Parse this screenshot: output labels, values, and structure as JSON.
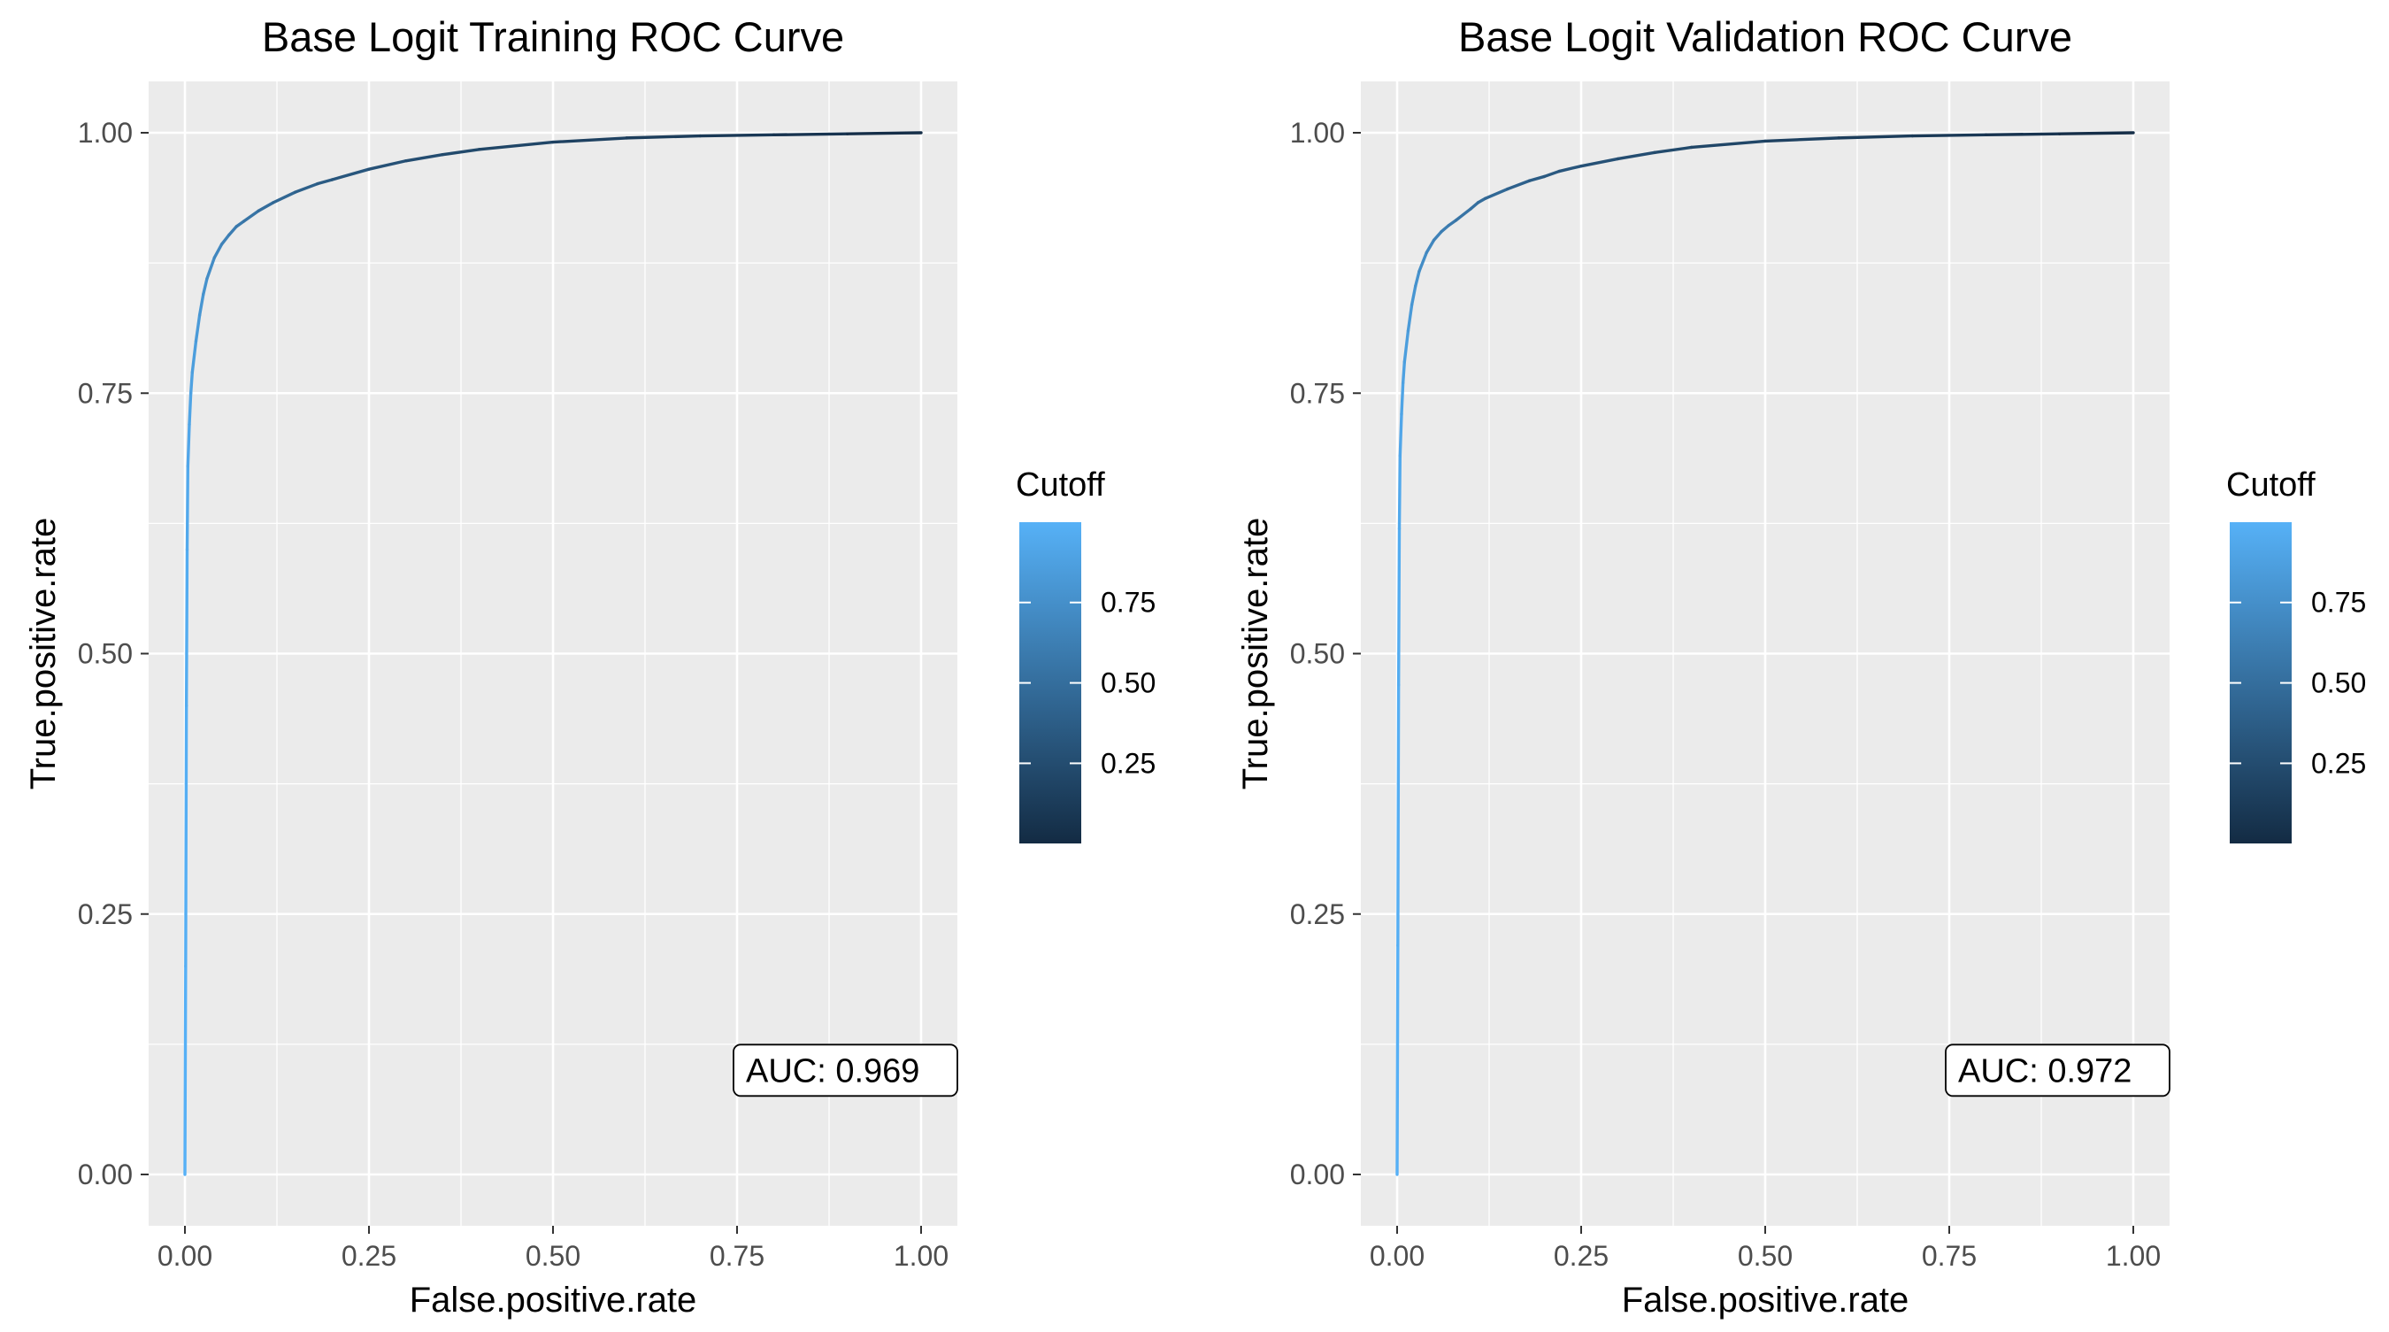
{
  "chart_data": [
    {
      "type": "line",
      "title": "Base Logit Training ROC Curve",
      "xlabel": "False.positive.rate",
      "ylabel": "True.positive.rate",
      "xlim": [
        0,
        1
      ],
      "ylim": [
        0,
        1
      ],
      "x_ticks": [
        "0.00",
        "0.25",
        "0.50",
        "0.75",
        "1.00"
      ],
      "y_ticks": [
        "0.00",
        "0.25",
        "0.50",
        "0.75",
        "1.00"
      ],
      "grid": true,
      "annotation": "AUC: 0.969",
      "legend": {
        "title": "Cutoff",
        "placement": "right",
        "labels": [
          "0.75",
          "0.50",
          "0.25"
        ],
        "colors": [
          "#56b1f7",
          "#132b43"
        ]
      },
      "series": [
        {
          "x": [
            0,
            0.001,
            0.002,
            0.003,
            0.004,
            0.006,
            0.008,
            0.01,
            0.015,
            0.02,
            0.025,
            0.03,
            0.04,
            0.05,
            0.06,
            0.07,
            0.08,
            0.1,
            0.12,
            0.15,
            0.18,
            0.2,
            0.25,
            0.3,
            0.35,
            0.4,
            0.5,
            0.6,
            0.7,
            0.8,
            0.9,
            1.0
          ],
          "y": [
            0,
            0.2,
            0.45,
            0.6,
            0.68,
            0.72,
            0.75,
            0.77,
            0.8,
            0.825,
            0.845,
            0.86,
            0.88,
            0.893,
            0.902,
            0.91,
            0.915,
            0.925,
            0.933,
            0.943,
            0.951,
            0.955,
            0.965,
            0.973,
            0.979,
            0.984,
            0.991,
            0.995,
            0.997,
            0.998,
            0.999,
            1.0
          ],
          "cutoff": [
            1.0,
            0.99,
            0.97,
            0.95,
            0.93,
            0.91,
            0.89,
            0.87,
            0.84,
            0.81,
            0.78,
            0.75,
            0.71,
            0.67,
            0.63,
            0.6,
            0.57,
            0.52,
            0.47,
            0.42,
            0.37,
            0.34,
            0.3,
            0.27,
            0.24,
            0.22,
            0.18,
            0.15,
            0.12,
            0.09,
            0.05,
            0.0
          ]
        }
      ]
    },
    {
      "type": "line",
      "title": "Base Logit Validation ROC Curve",
      "xlabel": "False.positive.rate",
      "ylabel": "True.positive.rate",
      "xlim": [
        0,
        1
      ],
      "ylim": [
        0,
        1
      ],
      "x_ticks": [
        "0.00",
        "0.25",
        "0.50",
        "0.75",
        "1.00"
      ],
      "y_ticks": [
        "0.00",
        "0.25",
        "0.50",
        "0.75",
        "1.00"
      ],
      "grid": true,
      "annotation": "AUC: 0.972",
      "legend": {
        "title": "Cutoff",
        "placement": "right",
        "labels": [
          "0.75",
          "0.50",
          "0.25"
        ],
        "colors": [
          "#56b1f7",
          "#132b43"
        ]
      },
      "series": [
        {
          "x": [
            0,
            0.001,
            0.002,
            0.003,
            0.004,
            0.006,
            0.008,
            0.01,
            0.015,
            0.02,
            0.025,
            0.03,
            0.04,
            0.05,
            0.06,
            0.07,
            0.08,
            0.1,
            0.11,
            0.12,
            0.15,
            0.18,
            0.2,
            0.22,
            0.25,
            0.3,
            0.35,
            0.4,
            0.5,
            0.6,
            0.7,
            0.8,
            0.9,
            1.0
          ],
          "y": [
            0,
            0.22,
            0.47,
            0.62,
            0.69,
            0.73,
            0.76,
            0.78,
            0.81,
            0.835,
            0.853,
            0.867,
            0.885,
            0.897,
            0.905,
            0.911,
            0.916,
            0.927,
            0.933,
            0.937,
            0.946,
            0.954,
            0.958,
            0.963,
            0.968,
            0.975,
            0.981,
            0.986,
            0.992,
            0.995,
            0.997,
            0.998,
            0.999,
            1.0
          ],
          "cutoff": [
            1.0,
            0.99,
            0.97,
            0.95,
            0.93,
            0.91,
            0.89,
            0.87,
            0.84,
            0.81,
            0.78,
            0.75,
            0.71,
            0.67,
            0.63,
            0.6,
            0.57,
            0.52,
            0.5,
            0.48,
            0.43,
            0.38,
            0.35,
            0.33,
            0.3,
            0.27,
            0.24,
            0.22,
            0.18,
            0.15,
            0.12,
            0.09,
            0.05,
            0.0
          ]
        }
      ]
    }
  ]
}
